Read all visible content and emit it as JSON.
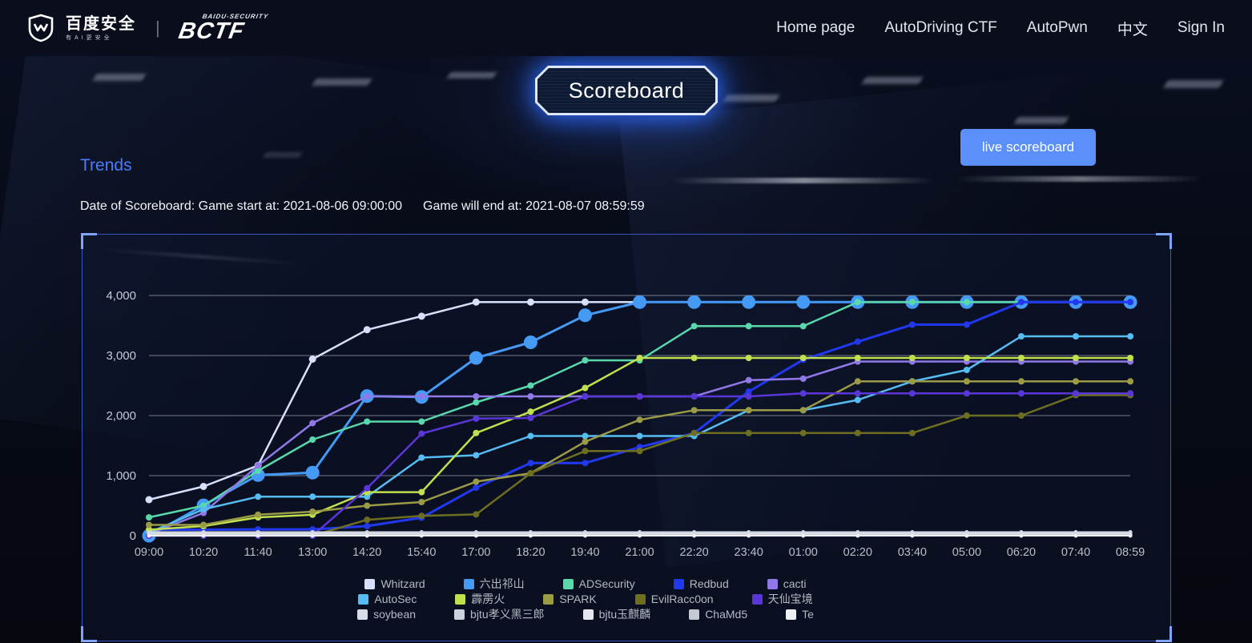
{
  "navbar": {
    "brand": {
      "baidu_text": "百度安全",
      "baidu_subtext": "有AI更安全",
      "bctf_subtext": "BAIDU-SECURITY",
      "bctf_text": "BCTF"
    },
    "items": [
      {
        "label": "Home page"
      },
      {
        "label": "AutoDriving CTF"
      },
      {
        "label": "AutoPwn"
      },
      {
        "label": "中文"
      },
      {
        "label": "Sign In"
      }
    ]
  },
  "hero": {
    "page_title": "Scoreboard",
    "live_button_label": "live scoreboard",
    "section_title": "Trends",
    "date_start": "Date of Scoreboard: Game start at: 2021-08-06 09:00:00",
    "date_end": "Game will end at: 2021-08-07 08:59:59"
  },
  "colors": {
    "accent_blue": "#5b8ff9",
    "trends_blue": "#4b7df8",
    "panel_border": "#3b55c0",
    "grid_gray": "#cfd3dd"
  },
  "chart_data": {
    "type": "line",
    "title": "",
    "xlabel": "",
    "ylabel": "",
    "ylim": [
      0,
      4000
    ],
    "grid": true,
    "legend_position": "bottom",
    "x_ticks": [
      "09:00",
      "10:20",
      "11:40",
      "13:00",
      "14:20",
      "15:40",
      "17:00",
      "18:20",
      "19:40",
      "21:00",
      "22:20",
      "23:40",
      "01:00",
      "02:20",
      "03:40",
      "05:00",
      "06:20",
      "07:40",
      "08:59"
    ],
    "y_tick_labels": [
      "0",
      "1,000",
      "2,000",
      "3,000",
      "4,000"
    ],
    "y_tick_values": [
      0,
      1000,
      2000,
      3000,
      4000
    ],
    "series": [
      {
        "name": "Whitzard",
        "color": "#d6e0fa",
        "line_width": 2.5,
        "marker_size": 4.5,
        "values": [
          600,
          820,
          1170,
          2940,
          3430,
          3655,
          3890,
          3890,
          3890,
          3890,
          3890,
          3890,
          3890,
          3890,
          3890,
          3890,
          3890,
          3890,
          3890
        ]
      },
      {
        "name": "六出祁山",
        "color": "#459af6",
        "line_width": 3,
        "marker_size": 8.5,
        "values": [
          0,
          505,
          1010,
          1050,
          2325,
          2310,
          2960,
          3220,
          3670,
          3890,
          3890,
          3890,
          3890,
          3890,
          3890,
          3890,
          3890,
          3890,
          3890
        ]
      },
      {
        "name": "ADSecurity",
        "color": "#58d8ab",
        "line_width": 2.5,
        "marker_size": 4,
        "values": [
          305,
          500,
          1080,
          1600,
          1900,
          1900,
          2220,
          2500,
          2920,
          2920,
          3490,
          3490,
          3490,
          3890,
          3890,
          3890,
          3890,
          3890,
          3890
        ]
      },
      {
        "name": "Redbud",
        "color": "#2138ef",
        "line_width": 3,
        "marker_size": 4,
        "values": [
          100,
          100,
          105,
          105,
          160,
          300,
          800,
          1210,
          1210,
          1475,
          1710,
          2400,
          2930,
          3230,
          3515,
          3515,
          3890,
          3890,
          3890
        ]
      },
      {
        "name": "cacti",
        "color": "#9078e8",
        "line_width": 2.5,
        "marker_size": 4,
        "values": [
          30,
          380,
          1170,
          1875,
          2320,
          2320,
          2320,
          2320,
          2320,
          2320,
          2320,
          2590,
          2615,
          2900,
          2900,
          2900,
          2900,
          2900,
          2900
        ]
      },
      {
        "name": "AutoSec",
        "color": "#55bdf2",
        "line_width": 2.5,
        "marker_size": 4,
        "values": [
          50,
          440,
          650,
          650,
          650,
          1300,
          1340,
          1660,
          1660,
          1660,
          1660,
          2090,
          2090,
          2260,
          2570,
          2760,
          3320,
          3320,
          3320
        ]
      },
      {
        "name": "霹雳火",
        "color": "#c0e04e",
        "line_width": 2.5,
        "marker_size": 4,
        "values": [
          100,
          160,
          305,
          350,
          725,
          725,
          1710,
          2065,
          2460,
          2960,
          2960,
          2960,
          2960,
          2960,
          2960,
          2960,
          2960,
          2960,
          2960
        ]
      },
      {
        "name": "SPARK",
        "color": "#9b9b46",
        "line_width": 2.5,
        "marker_size": 4,
        "values": [
          180,
          180,
          350,
          400,
          500,
          560,
          900,
          1040,
          1565,
          1930,
          2090,
          2090,
          2090,
          2570,
          2570,
          2570,
          2570,
          2570,
          2570
        ]
      },
      {
        "name": "EvilRacc0on",
        "color": "#6e6e20",
        "line_width": 2.5,
        "marker_size": 4,
        "values": [
          0,
          0,
          0,
          0,
          265,
          330,
          355,
          1040,
          1410,
          1410,
          1710,
          1710,
          1710,
          1710,
          1710,
          2000,
          2000,
          2340,
          2340
        ]
      },
      {
        "name": "天仙宝境",
        "color": "#5a36d8",
        "line_width": 2.5,
        "marker_size": 4,
        "values": [
          0,
          0,
          0,
          0,
          790,
          1700,
          1950,
          1960,
          2320,
          2320,
          2320,
          2320,
          2370,
          2370,
          2370,
          2370,
          2370,
          2370,
          2370
        ]
      },
      {
        "name": "soybean",
        "color": "#d8dce6",
        "line_width": 2,
        "marker_size": 2.5,
        "values": [
          60,
          60,
          60,
          60,
          60,
          60,
          60,
          60,
          60,
          60,
          60,
          60,
          60,
          60,
          60,
          60,
          60,
          60,
          60
        ]
      },
      {
        "name": "bjtu孝义黑三郎",
        "color": "#cdd2dd",
        "line_width": 2,
        "marker_size": 2.5,
        "values": [
          40,
          40,
          40,
          40,
          40,
          40,
          40,
          40,
          40,
          40,
          40,
          40,
          40,
          40,
          40,
          40,
          40,
          40,
          40
        ]
      },
      {
        "name": "bjtu玉麒麟",
        "color": "#e4e7ef",
        "line_width": 2,
        "marker_size": 2.5,
        "values": [
          25,
          25,
          25,
          25,
          25,
          25,
          25,
          25,
          25,
          25,
          25,
          25,
          25,
          25,
          25,
          25,
          25,
          25,
          25
        ]
      },
      {
        "name": "ChaMd5",
        "color": "#c4c9d5",
        "line_width": 2,
        "marker_size": 2.5,
        "values": [
          10,
          10,
          10,
          10,
          10,
          10,
          10,
          10,
          10,
          10,
          10,
          10,
          10,
          10,
          10,
          10,
          10,
          10,
          10
        ]
      },
      {
        "name": "Te",
        "color": "#eef0f6",
        "line_width": 2,
        "marker_size": 2.5,
        "values": [
          0,
          0,
          0,
          0,
          0,
          0,
          0,
          0,
          0,
          0,
          0,
          0,
          0,
          0,
          0,
          0,
          0,
          0,
          0
        ]
      }
    ],
    "legend_rows": [
      [
        0,
        1,
        2,
        3,
        4
      ],
      [
        5,
        6,
        7,
        8,
        9
      ],
      [
        10,
        11,
        12,
        13,
        14
      ]
    ]
  }
}
